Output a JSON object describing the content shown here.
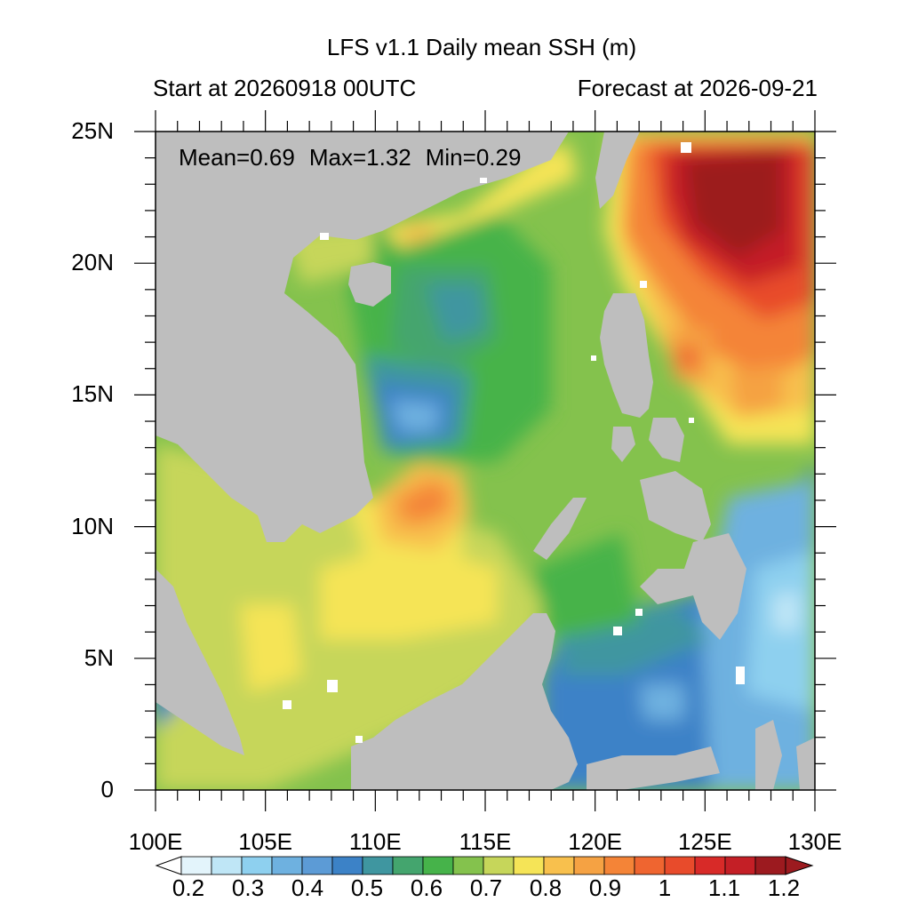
{
  "title": "LFS v1.1 Daily mean SSH (m)",
  "subtitle_left": "Start at 20260918 00UTC",
  "subtitle_right": "Forecast at 2026-09-21",
  "stats": {
    "mean": "Mean=0.69",
    "max": "Max=1.32",
    "min": "Min=0.29"
  },
  "axes": {
    "x_ticks": [
      "100E",
      "105E",
      "110E",
      "115E",
      "120E",
      "125E",
      "130E"
    ],
    "y_ticks": [
      "25N",
      "20N",
      "15N",
      "10N",
      "5N",
      "0"
    ],
    "lon_range": [
      100,
      130
    ],
    "lat_range": [
      0,
      25
    ]
  },
  "colorbar": {
    "labels": [
      "0.2",
      "0.3",
      "0.4",
      "0.5",
      "0.6",
      "0.7",
      "0.8",
      "0.9",
      "1",
      "1.1",
      "1.2"
    ],
    "colors": [
      "#e3f4fb",
      "#bfe6f6",
      "#8ed0ef",
      "#6eb1e0",
      "#5c9bd6",
      "#3c82c7",
      "#3f96a0",
      "#44a56e",
      "#46b34a",
      "#84c24d",
      "#c6d65a",
      "#f5e457",
      "#f8c04d",
      "#f5a243",
      "#f48437",
      "#ef6530",
      "#e84b2b",
      "#d82a28",
      "#c41f26",
      "#9c1a1f"
    ]
  },
  "colors": {
    "land": "#bebebe",
    "background": "#ffffff"
  }
}
